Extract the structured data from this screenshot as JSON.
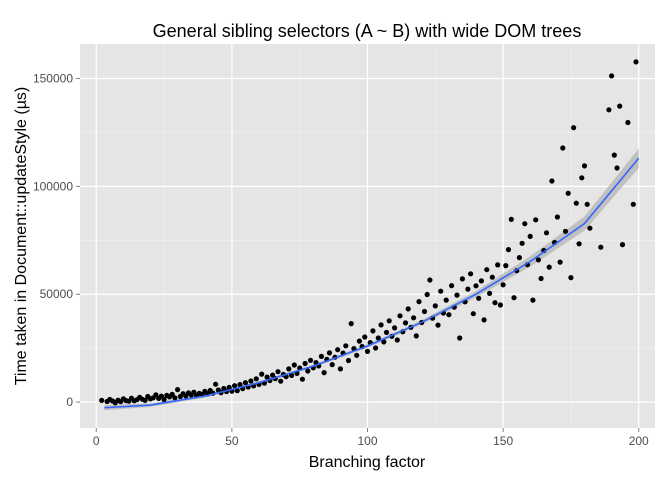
{
  "chart_data": {
    "type": "scatter",
    "title": "General sibling selectors (A ~ B) with wide DOM trees",
    "xlabel": "Branching factor",
    "ylabel": "Time taken in Document::updateStyle (µs)",
    "xlim": [
      -6,
      206
    ],
    "ylim": [
      -12000,
      166000
    ],
    "xticks": [
      0,
      50,
      100,
      150,
      200
    ],
    "xtick_labels": [
      "0",
      "50",
      "100",
      "150",
      "200"
    ],
    "yticks": [
      0,
      50000,
      100000,
      150000
    ],
    "ytick_labels": [
      "0",
      "50000",
      "100000",
      "150000"
    ],
    "grid": true,
    "legend": "none",
    "colors": {
      "panel": "#e5e5e5",
      "grid_major": "#ffffff",
      "grid_minor": "#f2f2f2",
      "points": "#000000",
      "smooth_line": "#3366ff",
      "smooth_band": "#b3b3b3"
    },
    "points": [
      [
        2,
        800
      ],
      [
        4,
        300
      ],
      [
        5,
        1200
      ],
      [
        6,
        500
      ],
      [
        7,
        -300
      ],
      [
        8,
        900
      ],
      [
        9,
        200
      ],
      [
        10,
        1500
      ],
      [
        11,
        700
      ],
      [
        12,
        400
      ],
      [
        13,
        1800
      ],
      [
        14,
        600
      ],
      [
        15,
        1100
      ],
      [
        16,
        2200
      ],
      [
        17,
        1300
      ],
      [
        18,
        800
      ],
      [
        19,
        2600
      ],
      [
        20,
        1500
      ],
      [
        21,
        2000
      ],
      [
        22,
        3400
      ],
      [
        23,
        1700
      ],
      [
        24,
        2800
      ],
      [
        25,
        1200
      ],
      [
        26,
        3100
      ],
      [
        27,
        2400
      ],
      [
        28,
        3600
      ],
      [
        29,
        2000
      ],
      [
        30,
        5800
      ],
      [
        31,
        2600
      ],
      [
        32,
        3900
      ],
      [
        33,
        2900
      ],
      [
        34,
        4300
      ],
      [
        35,
        3300
      ],
      [
        36,
        4600
      ],
      [
        37,
        3000
      ],
      [
        38,
        4100
      ],
      [
        39,
        3500
      ],
      [
        40,
        5000
      ],
      [
        41,
        3800
      ],
      [
        42,
        5400
      ],
      [
        43,
        4200
      ],
      [
        44,
        8300
      ],
      [
        45,
        5600
      ],
      [
        46,
        4400
      ],
      [
        47,
        6300
      ],
      [
        48,
        4900
      ],
      [
        49,
        6800
      ],
      [
        50,
        5100
      ],
      [
        51,
        7600
      ],
      [
        52,
        5300
      ],
      [
        53,
        8100
      ],
      [
        54,
        6200
      ],
      [
        55,
        9000
      ],
      [
        56,
        7000
      ],
      [
        57,
        9800
      ],
      [
        58,
        7500
      ],
      [
        59,
        10800
      ],
      [
        60,
        8200
      ],
      [
        61,
        13000
      ],
      [
        62,
        8800
      ],
      [
        63,
        11600
      ],
      [
        64,
        10000
      ],
      [
        65,
        12500
      ],
      [
        66,
        10900
      ],
      [
        67,
        14100
      ],
      [
        68,
        9700
      ],
      [
        69,
        12800
      ],
      [
        70,
        11800
      ],
      [
        71,
        15400
      ],
      [
        72,
        12400
      ],
      [
        73,
        17200
      ],
      [
        74,
        13300
      ],
      [
        75,
        15800
      ],
      [
        76,
        10600
      ],
      [
        77,
        17900
      ],
      [
        78,
        14400
      ],
      [
        79,
        19400
      ],
      [
        80,
        15900
      ],
      [
        81,
        18300
      ],
      [
        82,
        16800
      ],
      [
        83,
        21200
      ],
      [
        84,
        13700
      ],
      [
        85,
        19800
      ],
      [
        86,
        22800
      ],
      [
        87,
        17400
      ],
      [
        88,
        20800
      ],
      [
        89,
        24300
      ],
      [
        90,
        15400
      ],
      [
        91,
        22700
      ],
      [
        92,
        26100
      ],
      [
        93,
        19300
      ],
      [
        94,
        36400
      ],
      [
        95,
        24800
      ],
      [
        96,
        21700
      ],
      [
        97,
        28300
      ],
      [
        98,
        25800
      ],
      [
        99,
        30200
      ],
      [
        100,
        23500
      ],
      [
        101,
        27600
      ],
      [
        102,
        33000
      ],
      [
        103,
        25100
      ],
      [
        104,
        29700
      ],
      [
        105,
        35800
      ],
      [
        106,
        27900
      ],
      [
        107,
        32300
      ],
      [
        108,
        37700
      ],
      [
        109,
        30500
      ],
      [
        110,
        34400
      ],
      [
        111,
        28800
      ],
      [
        112,
        40000
      ],
      [
        113,
        32600
      ],
      [
        114,
        36700
      ],
      [
        115,
        43200
      ],
      [
        116,
        34700
      ],
      [
        117,
        39100
      ],
      [
        118,
        30700
      ],
      [
        119,
        46600
      ],
      [
        120,
        36900
      ],
      [
        121,
        42000
      ],
      [
        122,
        49900
      ],
      [
        123,
        56600
      ],
      [
        124,
        38900
      ],
      [
        125,
        44600
      ],
      [
        126,
        35700
      ],
      [
        127,
        51400
      ],
      [
        128,
        41300
      ],
      [
        129,
        47300
      ],
      [
        130,
        40500
      ],
      [
        131,
        54000
      ],
      [
        132,
        44000
      ],
      [
        133,
        49600
      ],
      [
        134,
        29700
      ],
      [
        135,
        57100
      ],
      [
        136,
        46500
      ],
      [
        137,
        52400
      ],
      [
        138,
        59500
      ],
      [
        139,
        41000
      ],
      [
        140,
        53900
      ],
      [
        141,
        48100
      ],
      [
        142,
        56200
      ],
      [
        143,
        38100
      ],
      [
        144,
        61400
      ],
      [
        145,
        50400
      ],
      [
        146,
        57900
      ],
      [
        147,
        46100
      ],
      [
        148,
        63600
      ],
      [
        149,
        45000
      ],
      [
        150,
        54400
      ],
      [
        151,
        63300
      ],
      [
        152,
        70700
      ],
      [
        153,
        84700
      ],
      [
        154,
        48400
      ],
      [
        155,
        60900
      ],
      [
        156,
        67000
      ],
      [
        157,
        73600
      ],
      [
        158,
        82700
      ],
      [
        159,
        63700
      ],
      [
        160,
        76800
      ],
      [
        161,
        47300
      ],
      [
        162,
        84500
      ],
      [
        163,
        65900
      ],
      [
        164,
        57300
      ],
      [
        165,
        70300
      ],
      [
        166,
        78500
      ],
      [
        167,
        62600
      ],
      [
        168,
        102500
      ],
      [
        169,
        74000
      ],
      [
        170,
        85800
      ],
      [
        171,
        64900
      ],
      [
        172,
        117800
      ],
      [
        173,
        79200
      ],
      [
        174,
        96800
      ],
      [
        175,
        57700
      ],
      [
        176,
        127200
      ],
      [
        177,
        92200
      ],
      [
        178,
        73400
      ],
      [
        179,
        104000
      ],
      [
        180,
        109500
      ],
      [
        181,
        91700
      ],
      [
        182,
        80600
      ],
      [
        186,
        71800
      ],
      [
        189,
        135500
      ],
      [
        190,
        151200
      ],
      [
        191,
        114500
      ],
      [
        192,
        108500
      ],
      [
        193,
        137200
      ],
      [
        194,
        73000
      ],
      [
        196,
        129600
      ],
      [
        198,
        91700
      ],
      [
        199,
        157700
      ]
    ],
    "smooth": {
      "x": [
        3,
        20,
        40,
        60,
        80,
        100,
        120,
        140,
        160,
        180,
        200
      ],
      "y": [
        -2600,
        -1400,
        2800,
        9000,
        16700,
        26000,
        37000,
        50000,
        65200,
        82800,
        113000
      ],
      "lower": [
        -3800,
        -2200,
        2100,
        8300,
        16000,
        25200,
        36000,
        48500,
        62800,
        79500,
        108500
      ],
      "upper": [
        -1400,
        -600,
        3500,
        9700,
        17400,
        26800,
        38000,
        51500,
        67600,
        86100,
        117500
      ]
    }
  }
}
